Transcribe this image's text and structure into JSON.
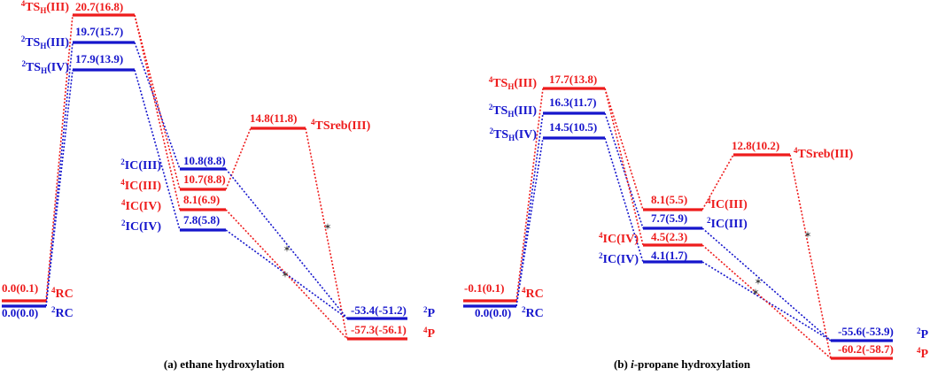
{
  "colors": {
    "red": "#ee1c1c",
    "blue": "#1515cc",
    "black": "#000000"
  },
  "panels": [
    {
      "id": "a",
      "caption_prefix": "(a) ",
      "caption_italic": "",
      "caption_rest": "ethane hydroxylation",
      "levels": [
        {
          "id": "RC4",
          "value": "0.0(0.1)",
          "color": "red",
          "species": "RC",
          "spin": "4",
          "sub": ""
        },
        {
          "id": "RC2",
          "value": "0.0(0.0)",
          "color": "blue",
          "species": "RC",
          "spin": "2",
          "sub": ""
        },
        {
          "id": "TSIII4",
          "value": "20.7(16.8)",
          "color": "red",
          "species": "TS",
          "spin": "4",
          "sub": "H",
          "suffix": "(III)"
        },
        {
          "id": "TSIII2",
          "value": "19.7(15.7)",
          "color": "blue",
          "species": "TS",
          "spin": "2",
          "sub": "H",
          "suffix": "(III)"
        },
        {
          "id": "TSIV2",
          "value": "17.9(13.9)",
          "color": "blue",
          "species": "TS",
          "spin": "2",
          "sub": "H",
          "suffix": "(IV)"
        },
        {
          "id": "ICIII2",
          "value": "10.8(8.8)",
          "color": "blue",
          "species": "IC(III)",
          "spin": "2",
          "sub": ""
        },
        {
          "id": "ICIII4",
          "value": "10.7(8.8)",
          "color": "red",
          "species": "IC(III)",
          "spin": "4",
          "sub": ""
        },
        {
          "id": "ICIV4",
          "value": "8.1(6.9)",
          "color": "red",
          "species": "IC(IV)",
          "spin": "4",
          "sub": ""
        },
        {
          "id": "ICIV2",
          "value": "7.8(5.8)",
          "color": "blue",
          "species": "IC(IV)",
          "spin": "2",
          "sub": ""
        },
        {
          "id": "TSreb4",
          "value": "14.8(11.8)",
          "color": "red",
          "species": "TSreb(III)",
          "spin": "4",
          "sub": ""
        },
        {
          "id": "P2",
          "value": "-53.4(-51.2)",
          "color": "blue",
          "species": "P",
          "spin": "2",
          "sub": ""
        },
        {
          "id": "P4",
          "value": "-57.3(-56.1)",
          "color": "red",
          "species": "P",
          "spin": "4",
          "sub": ""
        }
      ]
    },
    {
      "id": "b",
      "caption_prefix": "(b) ",
      "caption_italic": "i",
      "caption_rest": "-propane hydroxylation",
      "levels": [
        {
          "id": "RC4",
          "value": "-0.1(0.1)",
          "color": "red",
          "species": "RC",
          "spin": "4",
          "sub": ""
        },
        {
          "id": "RC2",
          "value": "0.0(0.0)",
          "color": "blue",
          "species": "RC",
          "spin": "2",
          "sub": ""
        },
        {
          "id": "TSIII4",
          "value": "17.7(13.8)",
          "color": "red",
          "species": "TS",
          "spin": "4",
          "sub": "H",
          "suffix": "(III)"
        },
        {
          "id": "TSIII2",
          "value": "16.3(11.7)",
          "color": "blue",
          "species": "TS",
          "spin": "2",
          "sub": "H",
          "suffix": "(III)"
        },
        {
          "id": "TSIV2",
          "value": "14.5(10.5)",
          "color": "blue",
          "species": "TS",
          "spin": "2",
          "sub": "H",
          "suffix": "(IV)"
        },
        {
          "id": "ICIII4",
          "value": "8.1(5.5)",
          "color": "red",
          "species": "IC(III)",
          "spin": "4",
          "sub": ""
        },
        {
          "id": "ICIII2",
          "value": "7.7(5.9)",
          "color": "blue",
          "species": "IC(III)",
          "spin": "2",
          "sub": ""
        },
        {
          "id": "ICIV4",
          "value": "4.5(2.3)",
          "color": "red",
          "species": "IC(IV)",
          "spin": "4",
          "sub": ""
        },
        {
          "id": "ICIV2",
          "value": "4.1(1.7)",
          "color": "blue",
          "species": "IC(IV)",
          "spin": "2",
          "sub": ""
        },
        {
          "id": "TSreb4",
          "value": "12.8(10.2)",
          "color": "red",
          "species": "TSreb(III)",
          "spin": "4",
          "sub": ""
        },
        {
          "id": "P2",
          "value": "-55.6(-53.9)",
          "color": "blue",
          "species": "P",
          "spin": "2",
          "sub": ""
        },
        {
          "id": "P4",
          "value": "-60.2(-58.7)",
          "color": "red",
          "species": "P",
          "spin": "4",
          "sub": ""
        }
      ]
    }
  ]
}
